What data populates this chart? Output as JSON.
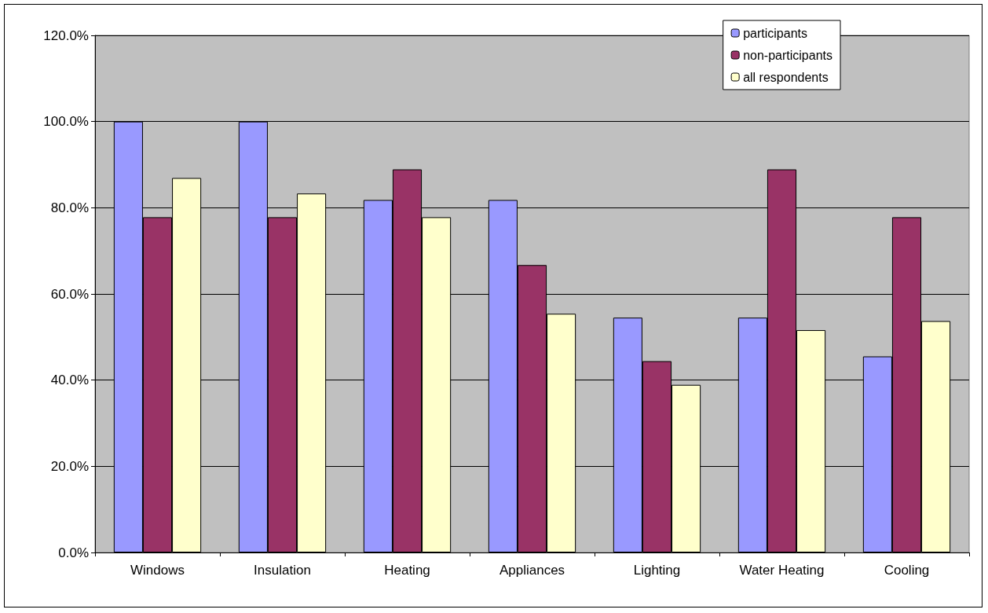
{
  "chart_data": {
    "type": "bar",
    "categories": [
      "Windows",
      "Insulation",
      "Heating",
      "Appliances",
      "Lighting",
      "Water Heating",
      "Cooling"
    ],
    "series": [
      {
        "name": "participants",
        "color": "#9999ff",
        "values": [
          100,
          100,
          81.8,
          81.8,
          54.5,
          54.5,
          45.5
        ]
      },
      {
        "name": "non-participants",
        "color": "#993366",
        "values": [
          77.8,
          77.8,
          88.9,
          66.7,
          44.4,
          88.9,
          77.8
        ]
      },
      {
        "name": "all respondents",
        "color": "#ffffcc",
        "values": [
          86.9,
          83.3,
          77.8,
          55.4,
          38.9,
          51.6,
          53.7
        ]
      }
    ],
    "ylim": [
      0,
      120
    ],
    "yticks": [
      {
        "value": 0,
        "label": "0.0%"
      },
      {
        "value": 20,
        "label": "20.0%"
      },
      {
        "value": 40,
        "label": "40.0%"
      },
      {
        "value": 60,
        "label": "60.0%"
      },
      {
        "value": 80,
        "label": "80.0%"
      },
      {
        "value": 100,
        "label": "100.0%"
      },
      {
        "value": 120,
        "label": "120.0%"
      }
    ],
    "grid": "y",
    "legend": "top right"
  }
}
